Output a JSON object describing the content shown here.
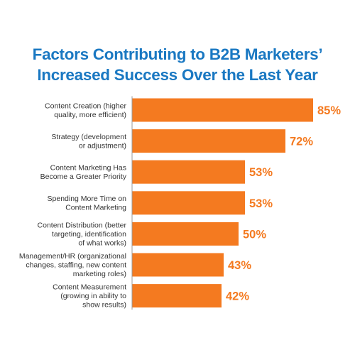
{
  "chart_data": {
    "type": "bar",
    "orientation": "horizontal",
    "title_lines": [
      "Factors Contributing to B2B Marketers’",
      "Increased Success Over the Last Year"
    ],
    "categories": [
      [
        "Content Creation (higher",
        "quality, more efficient)"
      ],
      [
        "Strategy (development",
        "or adjustment)"
      ],
      [
        "Content Marketing Has",
        "Become a Greater Priority"
      ],
      [
        "Spending More Time on",
        "Content Marketing"
      ],
      [
        "Content Distribution (better",
        "targeting, identification",
        "of what works)"
      ],
      [
        "Management/HR (organizational",
        "changes, staffing, new content",
        "marketing roles)"
      ],
      [
        "Content Measurement",
        "(growing in ability to",
        "show results)"
      ]
    ],
    "values": [
      85,
      72,
      53,
      53,
      50,
      43,
      42
    ],
    "value_labels": [
      "85%",
      "72%",
      "53%",
      "53%",
      "50%",
      "43%",
      "42%"
    ],
    "unit": "%",
    "xlim": [
      0,
      85
    ],
    "grid": false,
    "legend": "none",
    "colors": {
      "bar": "#f47a20",
      "title": "#1a78c2",
      "label": "#333333",
      "axis": "#999999"
    }
  }
}
